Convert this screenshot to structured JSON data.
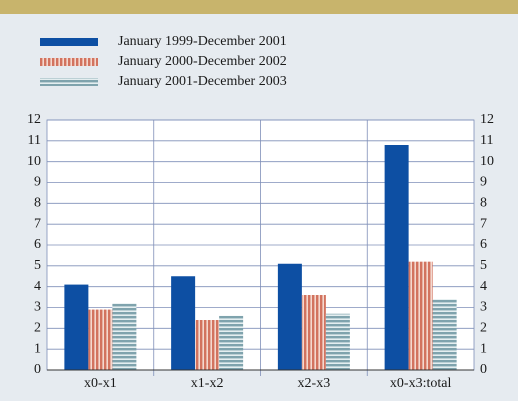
{
  "chart_data": {
    "type": "bar",
    "categories": [
      "x0-x1",
      "x1-x2",
      "x2-x3",
      "x0-x3:total"
    ],
    "series": [
      {
        "name": "January 1999-December 2001",
        "color": "#0d4fa3",
        "pattern": "solid",
        "values": [
          4.1,
          4.5,
          5.1,
          10.8
        ]
      },
      {
        "name": "January 2000-December 2002",
        "color": "#d2735f",
        "pattern": "vertical-stripes",
        "values": [
          2.9,
          2.4,
          3.6,
          5.2
        ]
      },
      {
        "name": "January 2001-December 2003",
        "color": "#7fa3ad",
        "pattern": "horizontal-stripes",
        "values": [
          3.2,
          2.6,
          2.7,
          3.4
        ]
      }
    ],
    "ylim": [
      0,
      12
    ],
    "yticks": [
      0,
      1,
      2,
      3,
      4,
      5,
      6,
      7,
      8,
      9,
      10,
      11,
      12
    ],
    "grid": true
  }
}
